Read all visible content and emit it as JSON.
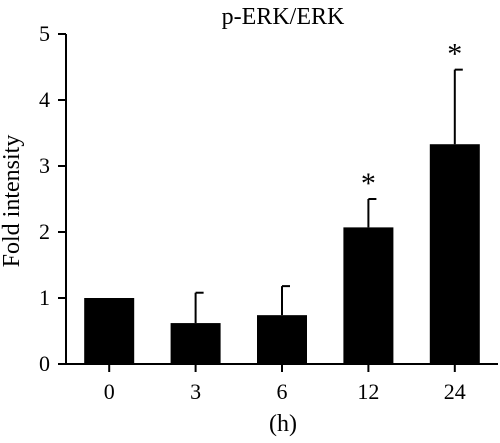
{
  "chart_data": {
    "type": "bar",
    "title": "p-ERK/ERK",
    "xlabel": "(h)",
    "ylabel": "Fold intensity",
    "categories": [
      "0",
      "3",
      "6",
      "12",
      "24"
    ],
    "values": [
      1.0,
      0.62,
      0.74,
      2.07,
      3.33
    ],
    "error_upper": [
      1.0,
      1.08,
      1.18,
      2.5,
      4.46
    ],
    "annotations": [
      "",
      "",
      "",
      "*",
      "*"
    ],
    "ylim": [
      0,
      5
    ],
    "yticks": [
      "0",
      "1",
      "2",
      "3",
      "4",
      "5"
    ],
    "grid": false,
    "legend": "none",
    "bar_color": "#000000"
  }
}
